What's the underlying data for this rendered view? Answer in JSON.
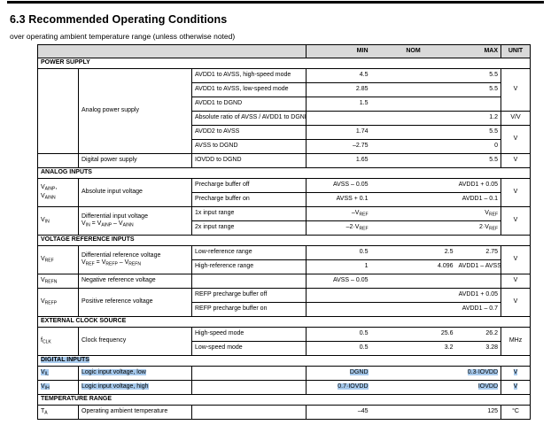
{
  "page": {
    "title": "6.3 Recommended Operating Conditions",
    "subtitle": "over operating ambient temperature range (unless otherwise noted)"
  },
  "colors": {
    "header_bg": "#d9d9d9",
    "selection_highlight": "#a6c9ec",
    "border": "#000000"
  },
  "table": {
    "column_headers": {
      "min": "MIN",
      "nom": "NOM",
      "max": "MAX",
      "unit": "UNIT"
    },
    "sections": [
      {
        "header": "POWER SUPPLY",
        "highlighted": false,
        "rows": [
          {
            "symbol": {
              "text": "",
              "rowspan": 6
            },
            "param": {
              "text": "Analog power supply",
              "rowspan": 6
            },
            "cond": "AVDD1 to AVSS, high-speed mode",
            "min": "4.5",
            "nom": "",
            "max": "5.5",
            "unit": {
              "text": "V",
              "rowspan": 3
            }
          },
          {
            "cond": "AVDD1 to AVSS, low-speed mode",
            "min": "2.85",
            "nom": "",
            "max": "5.5"
          },
          {
            "cond": "AVDD1 to DGND",
            "min": "1.5",
            "nom": "",
            "max": ""
          },
          {
            "cond": "Absolute ratio of AVSS / AVDD1 to DGND",
            "min": "",
            "nom": "",
            "max": "1.2",
            "unit": {
              "text": "V/V",
              "rowspan": 1
            }
          },
          {
            "cond": "AVDD2 to AVSS",
            "min": "1.74",
            "nom": "",
            "max": "5.5",
            "unit": {
              "text": "V",
              "rowspan": 2
            }
          },
          {
            "cond": "AVSS to DGND",
            "min": "–2.75",
            "nom": "",
            "max": "0"
          },
          {
            "symbol": {
              "text": "",
              "rowspan": 1
            },
            "param": {
              "text": "Digital power supply",
              "rowspan": 1
            },
            "cond": "IOVDD to DGND",
            "min": "1.65",
            "nom": "",
            "max": "5.5",
            "unit": {
              "text": "V",
              "rowspan": 1
            }
          }
        ]
      },
      {
        "header": "ANALOG INPUTS",
        "highlighted": false,
        "rows": [
          {
            "symbol": {
              "text": "V_{AINP},\nV_{AINN}",
              "rowspan": 2
            },
            "param": {
              "text": "Absolute input voltage",
              "rowspan": 2
            },
            "cond": "Precharge buffer off",
            "min": "AVSS – 0.05",
            "nom": "",
            "max": "AVDD1 + 0.05",
            "unit": {
              "text": "V",
              "rowspan": 2
            }
          },
          {
            "cond": "Precharge buffer on",
            "min": "AVSS + 0.1",
            "nom": "",
            "max": "AVDD1 – 0.1"
          },
          {
            "symbol": {
              "text": "V_{IN}",
              "rowspan": 2
            },
            "param": {
              "text": "Differential input voltage\nV_{IN} = V_{AINP} – V_{AINN}",
              "rowspan": 2
            },
            "cond": "1x input range",
            "min": "–V_{REF}",
            "nom": "",
            "max": "V_{REF}",
            "unit": {
              "text": "V",
              "rowspan": 2
            }
          },
          {
            "cond": "2x input range",
            "min": "–2·V_{REF}",
            "nom": "",
            "max": "2·V_{REF}"
          }
        ]
      },
      {
        "header": "VOLTAGE REFERENCE INPUTS",
        "highlighted": false,
        "rows": [
          {
            "symbol": {
              "text": "V_{REF}",
              "rowspan": 2
            },
            "param": {
              "text": "Differential reference voltage\nV_{REF} = V_{REFP} – V_{REFN}",
              "rowspan": 2
            },
            "cond": "Low-reference range",
            "min": "0.5",
            "nom": "2.5",
            "max": "2.75",
            "unit": {
              "text": "V",
              "rowspan": 2
            }
          },
          {
            "cond": "High-reference range",
            "min": "1",
            "nom": "4.096",
            "max": "AVDD1 – AVSS"
          },
          {
            "symbol": {
              "text": "V_{REFN}",
              "rowspan": 1
            },
            "param": {
              "text": "Negative reference voltage",
              "rowspan": 1
            },
            "cond": "",
            "min": "AVSS – 0.05",
            "nom": "",
            "max": "",
            "unit": {
              "text": "V",
              "rowspan": 1
            }
          },
          {
            "symbol": {
              "text": "V_{REFP}",
              "rowspan": 2
            },
            "param": {
              "text": "Positive reference voltage",
              "rowspan": 2
            },
            "cond": "REFP precharge buffer off",
            "min": "",
            "nom": "",
            "max": "AVDD1 + 0.05",
            "unit": {
              "text": "V",
              "rowspan": 2
            }
          },
          {
            "cond": "REFP precharge buffer on",
            "min": "",
            "nom": "",
            "max": "AVDD1 – 0.7"
          }
        ]
      },
      {
        "header": "EXTERNAL CLOCK SOURCE",
        "highlighted": false,
        "rows": [
          {
            "symbol": {
              "text": "f_{CLK}",
              "rowspan": 2
            },
            "param": {
              "text": "Clock frequency",
              "rowspan": 2
            },
            "cond": "High-speed mode",
            "min": "0.5",
            "nom": "25.6",
            "max": "26.2",
            "unit": {
              "text": "MHz",
              "rowspan": 2
            }
          },
          {
            "cond": "Low-speed mode",
            "min": "0.5",
            "nom": "3.2",
            "max": "3.28"
          }
        ]
      },
      {
        "header": "DIGITAL INPUTS",
        "highlighted": true,
        "rows": [
          {
            "symbol": {
              "text": "V_{IL}",
              "rowspan": 1
            },
            "param": {
              "text": "Logic input voltage, low",
              "rowspan": 1
            },
            "cond": "",
            "min": "DGND",
            "nom": "",
            "max": "0.3·IOVDD",
            "unit": {
              "text": "V",
              "rowspan": 1
            },
            "highlighted": true
          },
          {
            "symbol": {
              "text": "V_{IH}",
              "rowspan": 1
            },
            "param": {
              "text": "Logic input voltage, high",
              "rowspan": 1
            },
            "cond": "",
            "min": "0.7·IOVDD",
            "nom": "",
            "max": "IOVDD",
            "unit": {
              "text": "V",
              "rowspan": 1
            },
            "highlighted": true
          }
        ]
      },
      {
        "header": "TEMPERATURE RANGE",
        "highlighted": false,
        "rows": [
          {
            "symbol": {
              "text": "T_{A}",
              "rowspan": 1
            },
            "param": {
              "text": "Operating ambient temperature",
              "rowspan": 1
            },
            "cond": "",
            "min": "–45",
            "nom": "",
            "max": "125",
            "unit": {
              "text": "°C",
              "rowspan": 1
            }
          }
        ]
      }
    ]
  }
}
